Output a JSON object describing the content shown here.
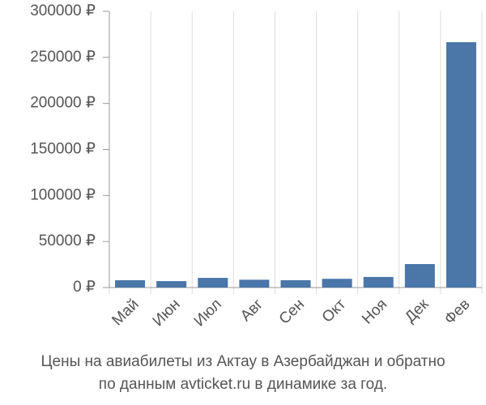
{
  "chart_data": {
    "type": "bar",
    "title": [
      "Цены на авиабилеты из Актау в Азербайджан и обратно",
      "по данным avticket.ru в динамике за год."
    ],
    "categories": [
      "Май",
      "Июн",
      "Июл",
      "Авг",
      "Сен",
      "Окт",
      "Ноя",
      "Дек",
      "Фев"
    ],
    "values": [
      8000,
      7000,
      10500,
      8500,
      8000,
      9500,
      11500,
      25500,
      266500
    ],
    "color": "#4a76a8",
    "ylim": [
      0,
      300000
    ],
    "yticks": [
      {
        "value": 0,
        "label": "0 ₽"
      },
      {
        "value": 50000,
        "label": "50000 ₽"
      },
      {
        "value": 100000,
        "label": "100000 ₽"
      },
      {
        "value": 150000,
        "label": "150000 ₽"
      },
      {
        "value": 200000,
        "label": "200000 ₽"
      },
      {
        "value": 250000,
        "label": "250000 ₽"
      },
      {
        "value": 300000,
        "label": "300000 ₽"
      }
    ],
    "grid": true
  }
}
